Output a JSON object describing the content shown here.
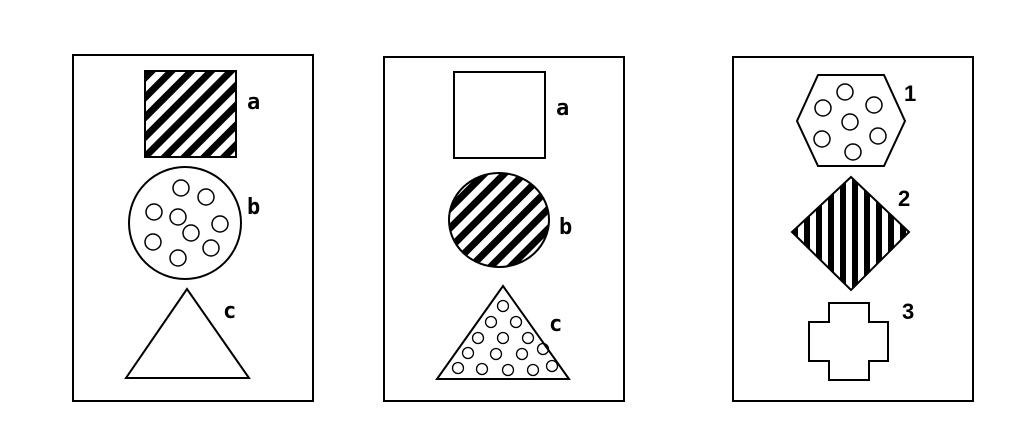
{
  "panels": [
    {
      "labels": [
        "a",
        "b",
        "c"
      ]
    },
    {
      "labels": [
        "a",
        "b",
        "c"
      ]
    },
    {
      "labels": [
        "1",
        "2",
        "3"
      ]
    }
  ]
}
